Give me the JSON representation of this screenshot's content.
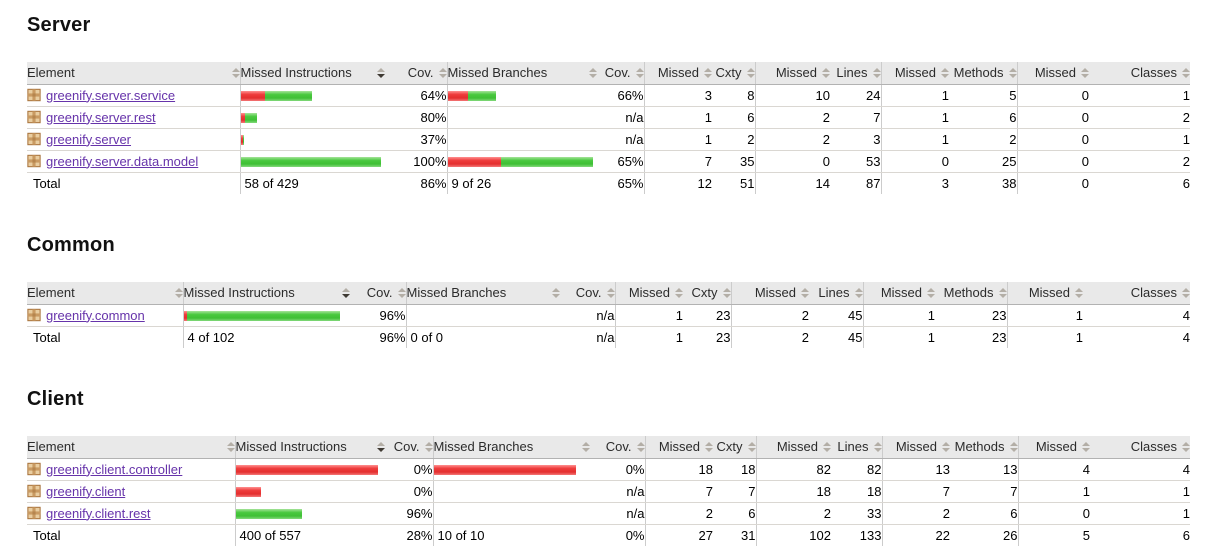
{
  "report": {
    "columns": [
      {
        "label": "Element",
        "sorted": false
      },
      {
        "label": "Missed Instructions",
        "sorted": true
      },
      {
        "label": "Cov.",
        "sorted": false
      },
      {
        "label": "Missed Branches",
        "sorted": false
      },
      {
        "label": "Cov.",
        "sorted": false
      },
      {
        "label": "Missed",
        "sorted": false
      },
      {
        "label": "Cxty",
        "sorted": false
      },
      {
        "label": "Missed",
        "sorted": false
      },
      {
        "label": "Lines",
        "sorted": false
      },
      {
        "label": "Missed",
        "sorted": false
      },
      {
        "label": "Methods",
        "sorted": false
      },
      {
        "label": "Missed",
        "sorted": false
      },
      {
        "label": "Classes",
        "sorted": false
      }
    ],
    "colors": {
      "bar_red": "#e83535",
      "bar_green": "#44c43a",
      "link_purple": "#6633aa",
      "header_bg": "#e9e9e9"
    },
    "sections": [
      {
        "title": "Server",
        "rows": [
          {
            "name": "greenify.server.service",
            "ins_bar": {
              "red": 24,
              "green": 47
            },
            "ins_cov": "64%",
            "br_bar": {
              "red": 20,
              "green": 28
            },
            "br_cov": "66%",
            "cells": [
              "3",
              "8",
              "10",
              "24",
              "1",
              "5",
              "0",
              "1"
            ]
          },
          {
            "name": "greenify.server.rest",
            "ins_bar": {
              "red": 4,
              "green": 12
            },
            "ins_cov": "80%",
            "br_bar": {
              "red": 0,
              "green": 0
            },
            "br_cov": "n/a",
            "cells": [
              "1",
              "6",
              "2",
              "7",
              "1",
              "6",
              "0",
              "2"
            ]
          },
          {
            "name": "greenify.server",
            "ins_bar": {
              "red": 2,
              "green": 1
            },
            "ins_cov": "37%",
            "br_bar": {
              "red": 0,
              "green": 0
            },
            "br_cov": "n/a",
            "cells": [
              "1",
              "2",
              "2",
              "3",
              "1",
              "2",
              "0",
              "1"
            ]
          },
          {
            "name": "greenify.server.data.model",
            "ins_bar": {
              "red": 0,
              "green": 140
            },
            "ins_cov": "100%",
            "br_bar": {
              "red": 53,
              "green": 92
            },
            "br_cov": "65%",
            "cells": [
              "7",
              "35",
              "0",
              "53",
              "0",
              "25",
              "0",
              "2"
            ]
          }
        ],
        "total": {
          "label": "Total",
          "ins_text": "58 of 429",
          "ins_cov": "86%",
          "br_text": "9 of 26",
          "br_cov": "65%",
          "cells": [
            "12",
            "51",
            "14",
            "87",
            "3",
            "38",
            "0",
            "6"
          ]
        }
      },
      {
        "title": "Common",
        "rows": [
          {
            "name": "greenify.common",
            "ins_bar": {
              "red": 3,
              "green": 153
            },
            "ins_cov": "96%",
            "br_bar": {
              "red": 0,
              "green": 0
            },
            "br_cov": "n/a",
            "cells": [
              "1",
              "23",
              "2",
              "45",
              "1",
              "23",
              "1",
              "4"
            ]
          }
        ],
        "total": {
          "label": "Total",
          "ins_text": "4 of 102",
          "ins_cov": "96%",
          "br_text": "0 of 0",
          "br_cov": "n/a",
          "cells": [
            "1",
            "23",
            "2",
            "45",
            "1",
            "23",
            "1",
            "4"
          ]
        }
      },
      {
        "title": "Client",
        "rows": [
          {
            "name": "greenify.client.controller",
            "ins_bar": {
              "red": 142,
              "green": 0
            },
            "ins_cov": "0%",
            "br_bar": {
              "red": 142,
              "green": 0
            },
            "br_cov": "0%",
            "cells": [
              "18",
              "18",
              "82",
              "82",
              "13",
              "13",
              "4",
              "4"
            ]
          },
          {
            "name": "greenify.client",
            "ins_bar": {
              "red": 25,
              "green": 0
            },
            "ins_cov": "0%",
            "br_bar": {
              "red": 0,
              "green": 0
            },
            "br_cov": "n/a",
            "cells": [
              "7",
              "7",
              "18",
              "18",
              "7",
              "7",
              "1",
              "1"
            ]
          },
          {
            "name": "greenify.client.rest",
            "ins_bar": {
              "red": 0,
              "green": 66
            },
            "ins_cov": "96%",
            "br_bar": {
              "red": 0,
              "green": 0
            },
            "br_cov": "n/a",
            "cells": [
              "2",
              "6",
              "2",
              "33",
              "2",
              "6",
              "0",
              "1"
            ]
          }
        ],
        "total": {
          "label": "Total",
          "ins_text": "400 of 557",
          "ins_cov": "28%",
          "br_text": "10 of 10",
          "br_cov": "0%",
          "cells": [
            "27",
            "31",
            "102",
            "133",
            "22",
            "26",
            "5",
            "6"
          ]
        }
      }
    ]
  }
}
